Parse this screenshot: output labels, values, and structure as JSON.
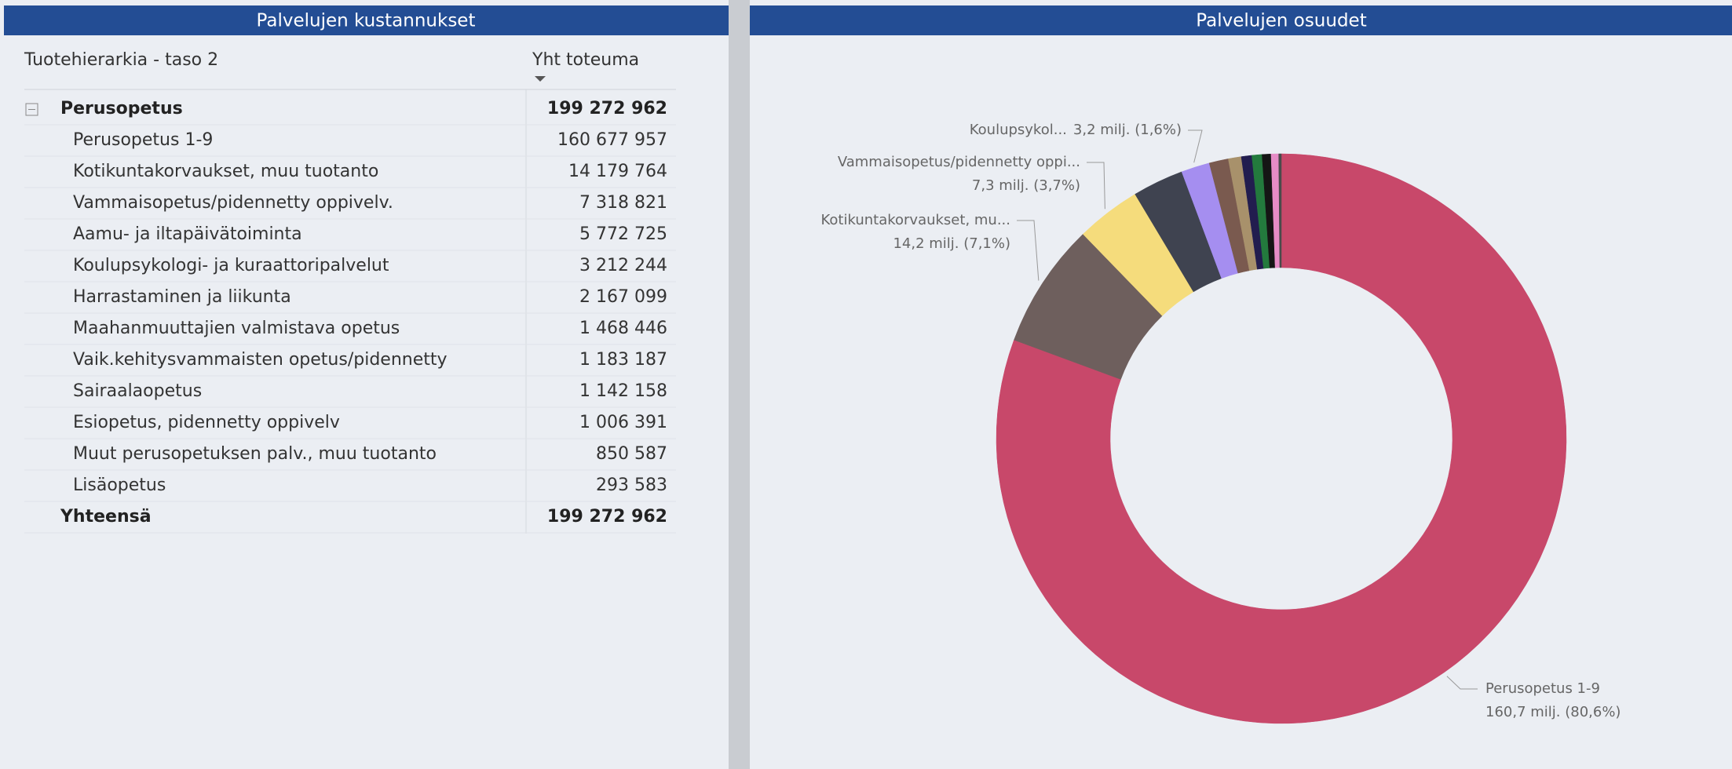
{
  "table": {
    "title": "Palvelujen kustannukset",
    "columns": [
      "Tuotehierarkia - taso 2",
      "Yht toteuma"
    ],
    "group": {
      "name": "Perusopetus",
      "value": "199 272 962"
    },
    "rows": [
      [
        "Perusopetus 1-9",
        "160 677 957"
      ],
      [
        "Kotikuntakorvaukset, muu tuotanto",
        "14 179 764"
      ],
      [
        "Vammaisopetus/pidennetty oppivelv.",
        "7 318 821"
      ],
      [
        "Aamu- ja iltapäivätoiminta",
        "5 772 725"
      ],
      [
        "Koulupsykologi- ja kuraattoripalvelut",
        "3 212 244"
      ],
      [
        "Harrastaminen ja liikunta",
        "2 167 099"
      ],
      [
        "Maahanmuuttajien valmistava opetus",
        "1 468 446"
      ],
      [
        "Vaik.kehitysvammaisten opetus/pidennetty",
        "1 183 187"
      ],
      [
        "Sairaalaopetus",
        "1 142 158"
      ],
      [
        "Esiopetus, pidennetty oppivelv",
        "1 006 391"
      ],
      [
        "Muut perusopetuksen palv., muu tuotanto",
        "850 587"
      ],
      [
        "Lisäopetus",
        "293 583"
      ]
    ],
    "total": [
      "Yhteensä",
      "199 272 962"
    ]
  },
  "chart_data": {
    "type": "donut",
    "title": "Palvelujen osuudet",
    "categories": [
      "Perusopetus 1-9",
      "Kotikuntakorvaukset, mu...",
      "Vammaisopetus/pidennetty oppi...",
      null,
      "Koulupsykol...",
      null,
      null,
      null,
      null,
      null,
      null,
      null
    ],
    "values": [
      160.677957,
      14.179764,
      7.318821,
      5.772725,
      3.212244,
      2.167099,
      1.468446,
      1.183187,
      1.142158,
      1.006391,
      0.850587,
      0.293583
    ],
    "value_labels": [
      "160,7 milj. (80,6%)",
      "14,2 milj. (7,1%)",
      "7,3 milj. (3,7%)",
      null,
      "3,2 milj. (1,6%)",
      null,
      null,
      null,
      null,
      null,
      null,
      null
    ],
    "colors": [
      "#c8486a",
      "#6e5f5d",
      "#f5dc7c",
      "#3f4350",
      "#a58ef0",
      "#7a5a4f",
      "#a8916b",
      "#221d4f",
      "#237a3d",
      "#151515",
      "#e68cc6",
      "#4a4a4a"
    ]
  }
}
